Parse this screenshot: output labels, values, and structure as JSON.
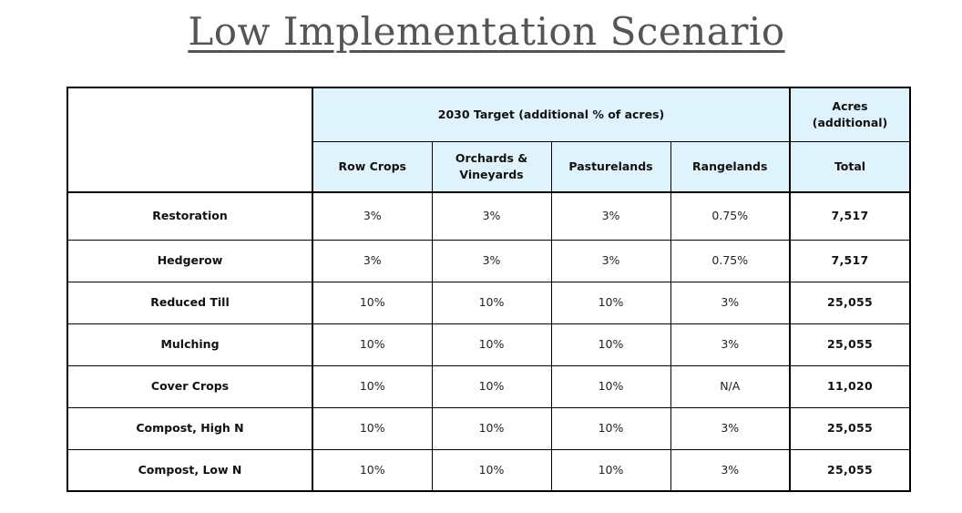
{
  "title": "Low Implementation Scenario",
  "table": {
    "group_header": "2030 Target (additional % of acres)",
    "acres_header": "Acres (additional)",
    "columns": [
      "Row Crops",
      "Orchards & Vineyards",
      "Pasturelands",
      "Rangelands",
      "Total"
    ],
    "rows": [
      {
        "practice": "Restoration",
        "values": [
          "3%",
          "3%",
          "3%",
          "0.75%"
        ],
        "total": "7,517"
      },
      {
        "practice": "Hedgerow",
        "values": [
          "3%",
          "3%",
          "3%",
          "0.75%"
        ],
        "total": "7,517"
      },
      {
        "practice": "Reduced Till",
        "values": [
          "10%",
          "10%",
          "10%",
          "3%"
        ],
        "total": "25,055"
      },
      {
        "practice": "Mulching",
        "values": [
          "10%",
          "10%",
          "10%",
          "3%"
        ],
        "total": "25,055"
      },
      {
        "practice": "Cover Crops",
        "values": [
          "10%",
          "10%",
          "10%",
          "N/A"
        ],
        "total": "11,020"
      },
      {
        "practice": "Compost, High N",
        "values": [
          "10%",
          "10%",
          "10%",
          "3%"
        ],
        "total": "25,055"
      },
      {
        "practice": "Compost, Low N",
        "values": [
          "10%",
          "10%",
          "10%",
          "3%"
        ],
        "total": "25,055"
      }
    ]
  },
  "colors": {
    "header_fill": "#dff3fd",
    "title_text": "#555555",
    "border": "#000000"
  }
}
